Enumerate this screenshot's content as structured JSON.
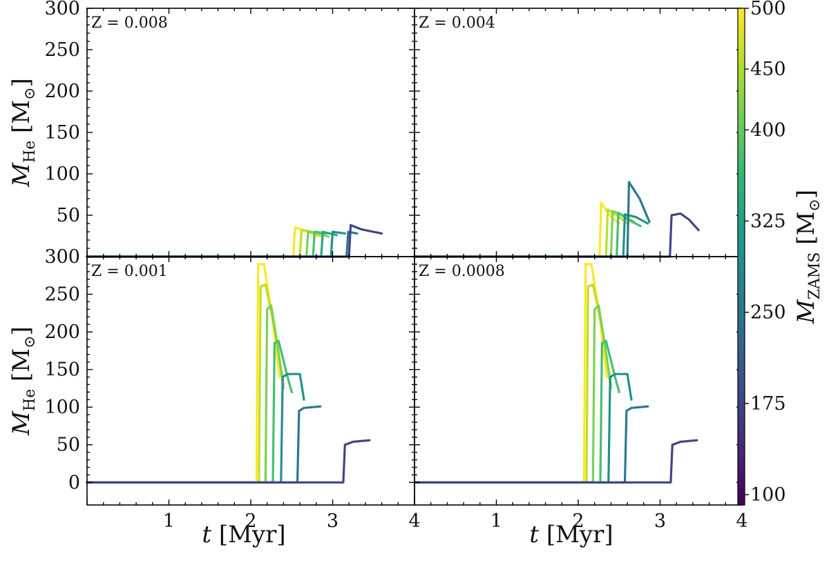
{
  "chart_data": [
    {
      "type": "line",
      "panel": "top-left",
      "label": "Z = 0.008",
      "xlim": [
        0,
        4
      ],
      "ylim": [
        0,
        300
      ],
      "xlabel": "",
      "ylabel": "M_He [M_sun]",
      "xticks": [],
      "yticks": [
        "50",
        "100",
        "150",
        "200",
        "250",
        "300"
      ],
      "series": [
        {
          "mzams": 500,
          "color": "#fde725",
          "points": [
            [
              0,
              0
            ],
            [
              2.52,
              0
            ],
            [
              2.54,
              35
            ],
            [
              2.65,
              32
            ],
            [
              2.75,
              28
            ],
            [
              2.82,
              25
            ]
          ]
        },
        {
          "mzams": 450,
          "color": "#bddf26",
          "points": [
            [
              0,
              0
            ],
            [
              2.6,
              0
            ],
            [
              2.62,
              32
            ],
            [
              2.75,
              30
            ],
            [
              2.85,
              25
            ]
          ]
        },
        {
          "mzams": 400,
          "color": "#7ad151",
          "points": [
            [
              0,
              0
            ],
            [
              2.68,
              0
            ],
            [
              2.7,
              30
            ],
            [
              2.85,
              28
            ],
            [
              2.95,
              24
            ]
          ]
        },
        {
          "mzams": 350,
          "color": "#44bf70",
          "points": [
            [
              0,
              0
            ],
            [
              2.76,
              0
            ],
            [
              2.78,
              30
            ],
            [
              2.95,
              28
            ]
          ]
        },
        {
          "mzams": 325,
          "color": "#22a884",
          "points": [
            [
              0,
              0
            ],
            [
              2.86,
              0
            ],
            [
              2.88,
              30
            ],
            [
              3.05,
              26
            ]
          ]
        },
        {
          "mzams": 300,
          "color": "#21918c",
          "points": [
            [
              0,
              0
            ],
            [
              2.98,
              0
            ],
            [
              3.0,
              30
            ],
            [
              3.15,
              28
            ]
          ]
        },
        {
          "mzams": 250,
          "color": "#2a788e",
          "points": [
            [
              0,
              0
            ],
            [
              3.17,
              0
            ],
            [
              3.19,
              30
            ],
            [
              3.3,
              28
            ]
          ]
        },
        {
          "mzams": 175,
          "color": "#414487",
          "points": [
            [
              0,
              0
            ],
            [
              3.2,
              0
            ],
            [
              3.22,
              38
            ],
            [
              3.35,
              33
            ],
            [
              3.6,
              28
            ]
          ]
        }
      ]
    },
    {
      "type": "line",
      "panel": "top-right",
      "label": "Z = 0.004",
      "xlim": [
        0,
        4
      ],
      "ylim": [
        0,
        300
      ],
      "xlabel": "",
      "ylabel": "",
      "xticks": [],
      "yticks": [],
      "series": [
        {
          "mzams": 500,
          "color": "#fde725",
          "points": [
            [
              0,
              0
            ],
            [
              2.26,
              0
            ],
            [
              2.28,
              65
            ],
            [
              2.4,
              48
            ],
            [
              2.5,
              40
            ]
          ]
        },
        {
          "mzams": 450,
          "color": "#bddf26",
          "points": [
            [
              0,
              0
            ],
            [
              2.34,
              0
            ],
            [
              2.36,
              57
            ],
            [
              2.5,
              48
            ],
            [
              2.6,
              40
            ]
          ]
        },
        {
          "mzams": 400,
          "color": "#7ad151",
          "points": [
            [
              0,
              0
            ],
            [
              2.4,
              0
            ],
            [
              2.42,
              55
            ],
            [
              2.55,
              50
            ],
            [
              2.68,
              42
            ]
          ]
        },
        {
          "mzams": 350,
          "color": "#44bf70",
          "points": [
            [
              0,
              0
            ],
            [
              2.47,
              0
            ],
            [
              2.49,
              53
            ],
            [
              2.6,
              45
            ],
            [
              2.76,
              37
            ]
          ]
        },
        {
          "mzams": 300,
          "color": "#21918c",
          "points": [
            [
              0,
              0
            ],
            [
              2.55,
              0
            ],
            [
              2.57,
              51
            ],
            [
              2.7,
              48
            ],
            [
              2.85,
              40
            ]
          ]
        },
        {
          "mzams": 250,
          "color": "#2a788e",
          "points": [
            [
              0,
              0
            ],
            [
              2.6,
              0
            ],
            [
              2.62,
              90
            ],
            [
              2.75,
              70
            ],
            [
              2.87,
              42
            ]
          ]
        },
        {
          "mzams": 175,
          "color": "#414487",
          "points": [
            [
              0,
              0
            ],
            [
              3.12,
              0
            ],
            [
              3.14,
              50
            ],
            [
              3.25,
              52
            ],
            [
              3.35,
              45
            ],
            [
              3.47,
              32
            ]
          ]
        }
      ]
    },
    {
      "type": "line",
      "panel": "bottom-left",
      "label": "Z = 0.001",
      "xlim": [
        0,
        4
      ],
      "ylim": [
        -30,
        300
      ],
      "xlabel": "t [Myr]",
      "ylabel": "M_He [M_sun]",
      "xticks": [
        "1",
        "2",
        "3",
        "4"
      ],
      "yticks": [
        "0",
        "50",
        "100",
        "150",
        "200",
        "250",
        "300"
      ],
      "series": [
        {
          "mzams": 500,
          "color": "#fde725",
          "points": [
            [
              0,
              0
            ],
            [
              2.07,
              0
            ],
            [
              2.09,
              290
            ],
            [
              2.16,
              290
            ],
            [
              2.25,
              230
            ],
            [
              2.35,
              140
            ]
          ]
        },
        {
          "mzams": 450,
          "color": "#bddf26",
          "points": [
            [
              0,
              0
            ],
            [
              2.1,
              0
            ],
            [
              2.12,
              260
            ],
            [
              2.18,
              263
            ],
            [
              2.3,
              200
            ],
            [
              2.4,
              130
            ]
          ]
        },
        {
          "mzams": 400,
          "color": "#7ad151",
          "points": [
            [
              0,
              0
            ],
            [
              2.18,
              0
            ],
            [
              2.2,
              230
            ],
            [
              2.25,
              235
            ],
            [
              2.33,
              180
            ],
            [
              2.4,
              125
            ]
          ]
        },
        {
          "mzams": 350,
          "color": "#44bf70",
          "points": [
            [
              0,
              0
            ],
            [
              2.27,
              0
            ],
            [
              2.29,
              185
            ],
            [
              2.34,
              188
            ],
            [
              2.45,
              140
            ],
            [
              2.5,
              120
            ]
          ]
        },
        {
          "mzams": 300,
          "color": "#21918c",
          "points": [
            [
              0,
              0
            ],
            [
              2.37,
              0
            ],
            [
              2.39,
              140
            ],
            [
              2.45,
              144
            ],
            [
              2.6,
              144
            ],
            [
              2.65,
              110
            ]
          ]
        },
        {
          "mzams": 250,
          "color": "#2a788e",
          "points": [
            [
              0,
              0
            ],
            [
              2.57,
              0
            ],
            [
              2.59,
              95
            ],
            [
              2.65,
              99
            ],
            [
              2.85,
              101
            ]
          ]
        },
        {
          "mzams": 175,
          "color": "#414487",
          "points": [
            [
              0,
              0
            ],
            [
              3.13,
              0
            ],
            [
              3.15,
              50
            ],
            [
              3.25,
              54
            ],
            [
              3.45,
              56
            ]
          ]
        }
      ]
    },
    {
      "type": "line",
      "panel": "bottom-right",
      "label": "Z = 0.0008",
      "xlim": [
        0,
        4
      ],
      "ylim": [
        -30,
        300
      ],
      "xlabel": "t [Myr]",
      "ylabel": "",
      "xticks": [
        "1",
        "2",
        "3",
        "4"
      ],
      "yticks": [],
      "series": [
        {
          "mzams": 500,
          "color": "#fde725",
          "points": [
            [
              0,
              0
            ],
            [
              2.07,
              0
            ],
            [
              2.09,
              290
            ],
            [
              2.16,
              290
            ],
            [
              2.25,
              230
            ],
            [
              2.35,
              140
            ]
          ]
        },
        {
          "mzams": 450,
          "color": "#bddf26",
          "points": [
            [
              0,
              0
            ],
            [
              2.1,
              0
            ],
            [
              2.12,
              260
            ],
            [
              2.18,
              263
            ],
            [
              2.3,
              200
            ],
            [
              2.4,
              130
            ]
          ]
        },
        {
          "mzams": 400,
          "color": "#7ad151",
          "points": [
            [
              0,
              0
            ],
            [
              2.18,
              0
            ],
            [
              2.2,
              230
            ],
            [
              2.25,
              235
            ],
            [
              2.33,
              180
            ],
            [
              2.4,
              125
            ]
          ]
        },
        {
          "mzams": 350,
          "color": "#44bf70",
          "points": [
            [
              0,
              0
            ],
            [
              2.27,
              0
            ],
            [
              2.29,
              185
            ],
            [
              2.34,
              188
            ],
            [
              2.45,
              140
            ],
            [
              2.5,
              120
            ]
          ]
        },
        {
          "mzams": 300,
          "color": "#21918c",
          "points": [
            [
              0,
              0
            ],
            [
              2.37,
              0
            ],
            [
              2.39,
              140
            ],
            [
              2.45,
              144
            ],
            [
              2.6,
              144
            ],
            [
              2.65,
              110
            ]
          ]
        },
        {
          "mzams": 250,
          "color": "#2a788e",
          "points": [
            [
              0,
              0
            ],
            [
              2.57,
              0
            ],
            [
              2.59,
              95
            ],
            [
              2.65,
              99
            ],
            [
              2.85,
              101
            ]
          ]
        },
        {
          "mzams": 175,
          "color": "#414487",
          "points": [
            [
              0,
              0
            ],
            [
              3.13,
              0
            ],
            [
              3.15,
              50
            ],
            [
              3.25,
              54
            ],
            [
              3.45,
              56
            ]
          ]
        }
      ]
    }
  ],
  "colorbar": {
    "label": "M_ZAMS [M_sun]",
    "range": [
      100,
      500
    ],
    "ticks": [
      "100",
      "175",
      "250",
      "325",
      "400",
      "450",
      "500"
    ],
    "tick_values": [
      100,
      175,
      250,
      325,
      400,
      450,
      500
    ],
    "colormap": [
      "#440154",
      "#482878",
      "#3e4989",
      "#31688e",
      "#26828e",
      "#1f9e89",
      "#35b779",
      "#6ece58",
      "#b5de2b",
      "#fde725"
    ]
  }
}
